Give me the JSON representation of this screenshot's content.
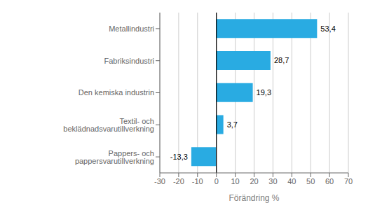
{
  "chart_data": {
    "type": "bar",
    "orientation": "horizontal",
    "categories": [
      "Pappers- och pappersvarutillverkning",
      "Textil- och beklädnadsvarutillverkning",
      "Den kemiska industrin",
      "Fabriksindustri",
      "Metallindustri"
    ],
    "values": [
      -13.3,
      3.7,
      19.3,
      28.7,
      53.4
    ],
    "value_labels": [
      "-13,3",
      "3,7",
      "19,3",
      "28,7",
      "53,4"
    ],
    "data_labels": true,
    "color": "#29abe2",
    "xlabel": "Förändring %",
    "xlim": [
      -30,
      70
    ],
    "xticks": [
      -30,
      -20,
      -10,
      0,
      10,
      20,
      30,
      40,
      50,
      60,
      70
    ],
    "grid": true
  }
}
